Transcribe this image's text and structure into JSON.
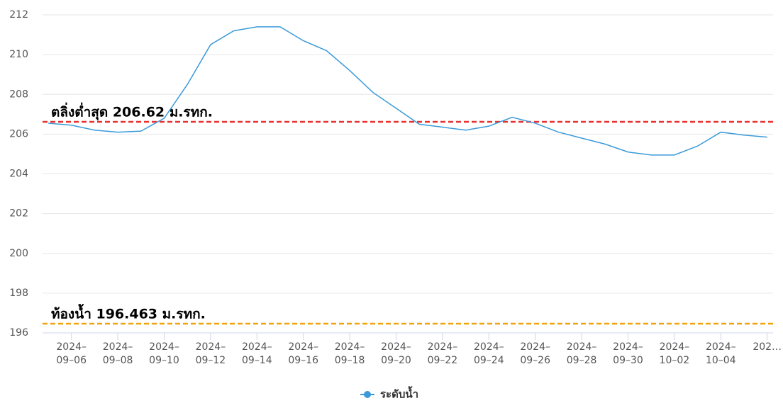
{
  "chart_data": {
    "type": "line",
    "categories": [
      null,
      "2024–09–06",
      null,
      "2024–09–08",
      null,
      "2024–09–10",
      null,
      "2024–09–12",
      null,
      "2024–09–14",
      null,
      "2024–09–16",
      null,
      "2024–09–18",
      null,
      "2024–09–20",
      null,
      "2024–09–22",
      null,
      "2024–09–24",
      null,
      "2024–09–26",
      null,
      "2024–09–28",
      null,
      "2024–09–30",
      null,
      "2024–10–02",
      null,
      "2024–10–04",
      null,
      "202…"
    ],
    "series": [
      {
        "name": "ระดับน้ำ",
        "color": "#3a9ad9",
        "values": [
          206.55,
          206.45,
          206.2,
          206.1,
          206.15,
          206.8,
          208.5,
          210.5,
          211.2,
          211.4,
          211.4,
          210.7,
          210.2,
          209.2,
          208.1,
          207.3,
          206.5,
          206.35,
          206.2,
          206.4,
          206.85,
          206.55,
          206.1,
          205.8,
          205.5,
          205.1,
          204.95,
          204.95,
          205.4,
          206.1,
          205.95,
          205.85
        ]
      }
    ],
    "ylim": [
      196,
      212
    ],
    "yticks": [
      196,
      198,
      200,
      202,
      204,
      206,
      208,
      210,
      212
    ],
    "grid": true,
    "annotations": [
      {
        "value": 206.62,
        "label": "ตลิ่งต่ำสุด 206.62 ม.รทก.",
        "color": "#e8312f"
      },
      {
        "value": 196.463,
        "label": "ท้องน้ำ 196.463 ม.รทก.",
        "color": "#f0a30a"
      }
    ],
    "legend": "bottom"
  }
}
